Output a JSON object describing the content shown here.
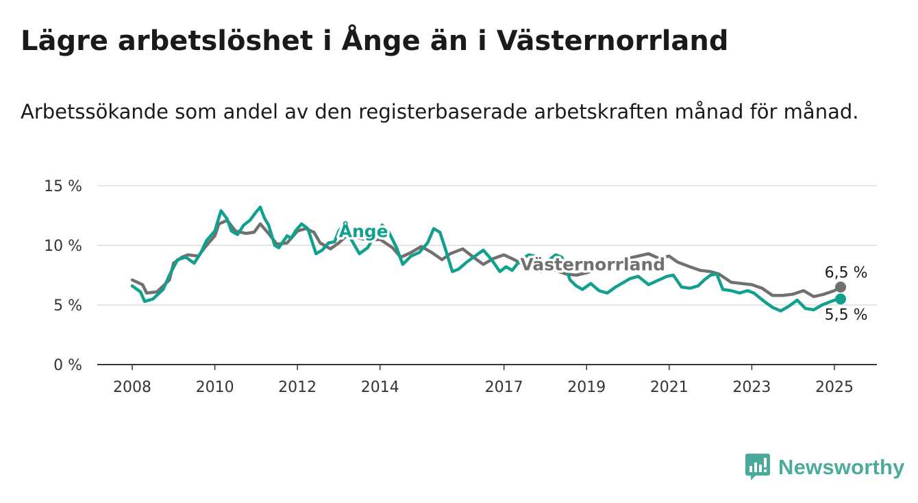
{
  "header": {
    "title": "Lägre arbetslöshet i Ånge än i Västernorrland",
    "subtitle": "Arbetssökande som andel av den registerbaserade arbetskraften månad för månad."
  },
  "brand": {
    "name": "Newsworthy",
    "icon": "newsworthy-logo-icon",
    "color": "#4aaa9c"
  },
  "chart_data": {
    "type": "line",
    "ylim": [
      0,
      15
    ],
    "yticks": [
      0,
      5,
      10,
      15
    ],
    "ytick_labels": [
      "0 %",
      "5 %",
      "10 %",
      "15 %"
    ],
    "xlim": [
      2007.95,
      2025.2
    ],
    "xticks": [
      2008,
      2010,
      2012,
      2014,
      2017,
      2019,
      2021,
      2023,
      2025
    ],
    "xtick_labels": [
      "2008",
      "2010",
      "2012",
      "2014",
      "2017",
      "2019",
      "2021",
      "2023",
      "2025"
    ],
    "grid": true,
    "series": [
      {
        "name": "Västernorrland",
        "color": "#707070",
        "end_label": "6,5 %",
        "x": [
          2008.0,
          2008.25,
          2008.35,
          2008.6,
          2008.9,
          2009.0,
          2009.2,
          2009.35,
          2009.6,
          2009.8,
          2010.0,
          2010.1,
          2010.3,
          2010.5,
          2010.75,
          2010.95,
          2011.1,
          2011.3,
          2011.5,
          2011.75,
          2012.0,
          2012.2,
          2012.4,
          2012.55,
          2012.8,
          2013.0,
          2013.25,
          2013.5,
          2013.75,
          2014.0,
          2014.3,
          2014.5,
          2014.75,
          2015.0,
          2015.25,
          2015.5,
          2015.7,
          2016.0,
          2016.3,
          2016.5,
          2016.75,
          2017.0,
          2017.25,
          2017.5,
          2017.75,
          2018.0,
          2018.25,
          2018.5,
          2018.75,
          2019.0,
          2019.25,
          2019.5,
          2019.75,
          2020.0,
          2020.25,
          2020.5,
          2020.75,
          2021.0,
          2021.2,
          2021.5,
          2021.75,
          2022.0,
          2022.2,
          2022.5,
          2022.75,
          2023.0,
          2023.25,
          2023.5,
          2023.75,
          2024.0,
          2024.25,
          2024.5,
          2024.75,
          2025.0,
          2025.15
        ],
        "values": [
          7.1,
          6.7,
          6.0,
          6.1,
          7.1,
          8.5,
          9.0,
          9.2,
          9.1,
          10.0,
          10.8,
          11.8,
          12.1,
          11.2,
          11.0,
          11.1,
          11.8,
          11.0,
          10.1,
          10.2,
          11.2,
          11.4,
          11.1,
          10.2,
          9.7,
          10.2,
          11.0,
          10.6,
          10.4,
          10.5,
          9.8,
          9.0,
          9.4,
          9.9,
          9.4,
          8.8,
          9.3,
          9.7,
          8.9,
          8.4,
          8.9,
          9.2,
          8.8,
          8.3,
          8.1,
          8.4,
          7.9,
          7.6,
          7.5,
          7.7,
          8.0,
          8.2,
          8.6,
          8.9,
          9.1,
          9.3,
          8.9,
          9.1,
          8.6,
          8.2,
          7.9,
          7.8,
          7.6,
          6.9,
          6.8,
          6.7,
          6.4,
          5.8,
          5.8,
          5.9,
          6.2,
          5.7,
          5.9,
          6.2,
          6.5
        ]
      },
      {
        "name": "Ånge",
        "color": "#12a08e",
        "end_label": "5,5 %",
        "x": [
          2008.0,
          2008.2,
          2008.3,
          2008.5,
          2008.75,
          2008.9,
          2009.1,
          2009.3,
          2009.5,
          2009.65,
          2009.8,
          2010.0,
          2010.15,
          2010.3,
          2010.4,
          2010.55,
          2010.7,
          2010.85,
          2011.0,
          2011.1,
          2011.2,
          2011.3,
          2011.45,
          2011.55,
          2011.75,
          2011.85,
          2011.95,
          2012.1,
          2012.25,
          2012.45,
          2012.6,
          2012.75,
          2012.9,
          2013.0,
          2013.15,
          2013.3,
          2013.5,
          2013.7,
          2013.9,
          2014.05,
          2014.2,
          2014.4,
          2014.55,
          2014.75,
          2014.95,
          2015.15,
          2015.3,
          2015.45,
          2015.6,
          2015.75,
          2015.9,
          2016.1,
          2016.3,
          2016.5,
          2016.7,
          2016.9,
          2017.05,
          2017.2,
          2017.4,
          2017.6,
          2017.75,
          2017.9,
          2018.1,
          2018.25,
          2018.4,
          2018.6,
          2018.75,
          2018.9,
          2019.1,
          2019.3,
          2019.5,
          2019.7,
          2019.9,
          2020.05,
          2020.25,
          2020.5,
          2020.75,
          2020.95,
          2021.1,
          2021.3,
          2021.5,
          2021.7,
          2021.85,
          2022.0,
          2022.15,
          2022.3,
          2022.5,
          2022.7,
          2022.9,
          2023.05,
          2023.3,
          2023.5,
          2023.7,
          2023.9,
          2024.1,
          2024.3,
          2024.5,
          2024.7,
          2024.85,
          2025.0,
          2025.15
        ],
        "values": [
          6.6,
          6.1,
          5.3,
          5.5,
          6.3,
          7.5,
          8.8,
          9.0,
          8.5,
          9.3,
          10.4,
          11.2,
          12.9,
          12.2,
          11.2,
          10.9,
          11.7,
          12.1,
          12.8,
          13.2,
          12.3,
          11.7,
          10.0,
          9.8,
          10.8,
          10.6,
          11.2,
          11.8,
          11.4,
          9.3,
          9.6,
          10.2,
          10.3,
          11.2,
          11.9,
          10.5,
          9.3,
          9.8,
          11.0,
          11.7,
          11.2,
          9.8,
          8.4,
          9.1,
          9.4,
          10.2,
          11.4,
          11.1,
          9.5,
          7.8,
          8.0,
          8.6,
          9.1,
          9.6,
          8.8,
          7.8,
          8.2,
          7.9,
          8.8,
          9.2,
          9.1,
          7.8,
          8.8,
          9.2,
          9.0,
          7.1,
          6.6,
          6.3,
          6.8,
          6.2,
          6.0,
          6.5,
          6.9,
          7.2,
          7.4,
          6.7,
          7.1,
          7.4,
          7.5,
          6.5,
          6.4,
          6.6,
          7.1,
          7.5,
          7.6,
          6.3,
          6.2,
          6.0,
          6.2,
          6.0,
          5.3,
          4.8,
          4.5,
          4.9,
          5.4,
          4.7,
          4.6,
          5.0,
          5.2,
          5.4,
          5.5
        ]
      }
    ],
    "labels": [
      {
        "text": "Ånge",
        "series": "Ånge",
        "x": 2013.6,
        "y": 10.7
      },
      {
        "text": "Västernorrland",
        "series": "Västernorrland",
        "x": 2019.15,
        "y": 7.9
      }
    ]
  }
}
